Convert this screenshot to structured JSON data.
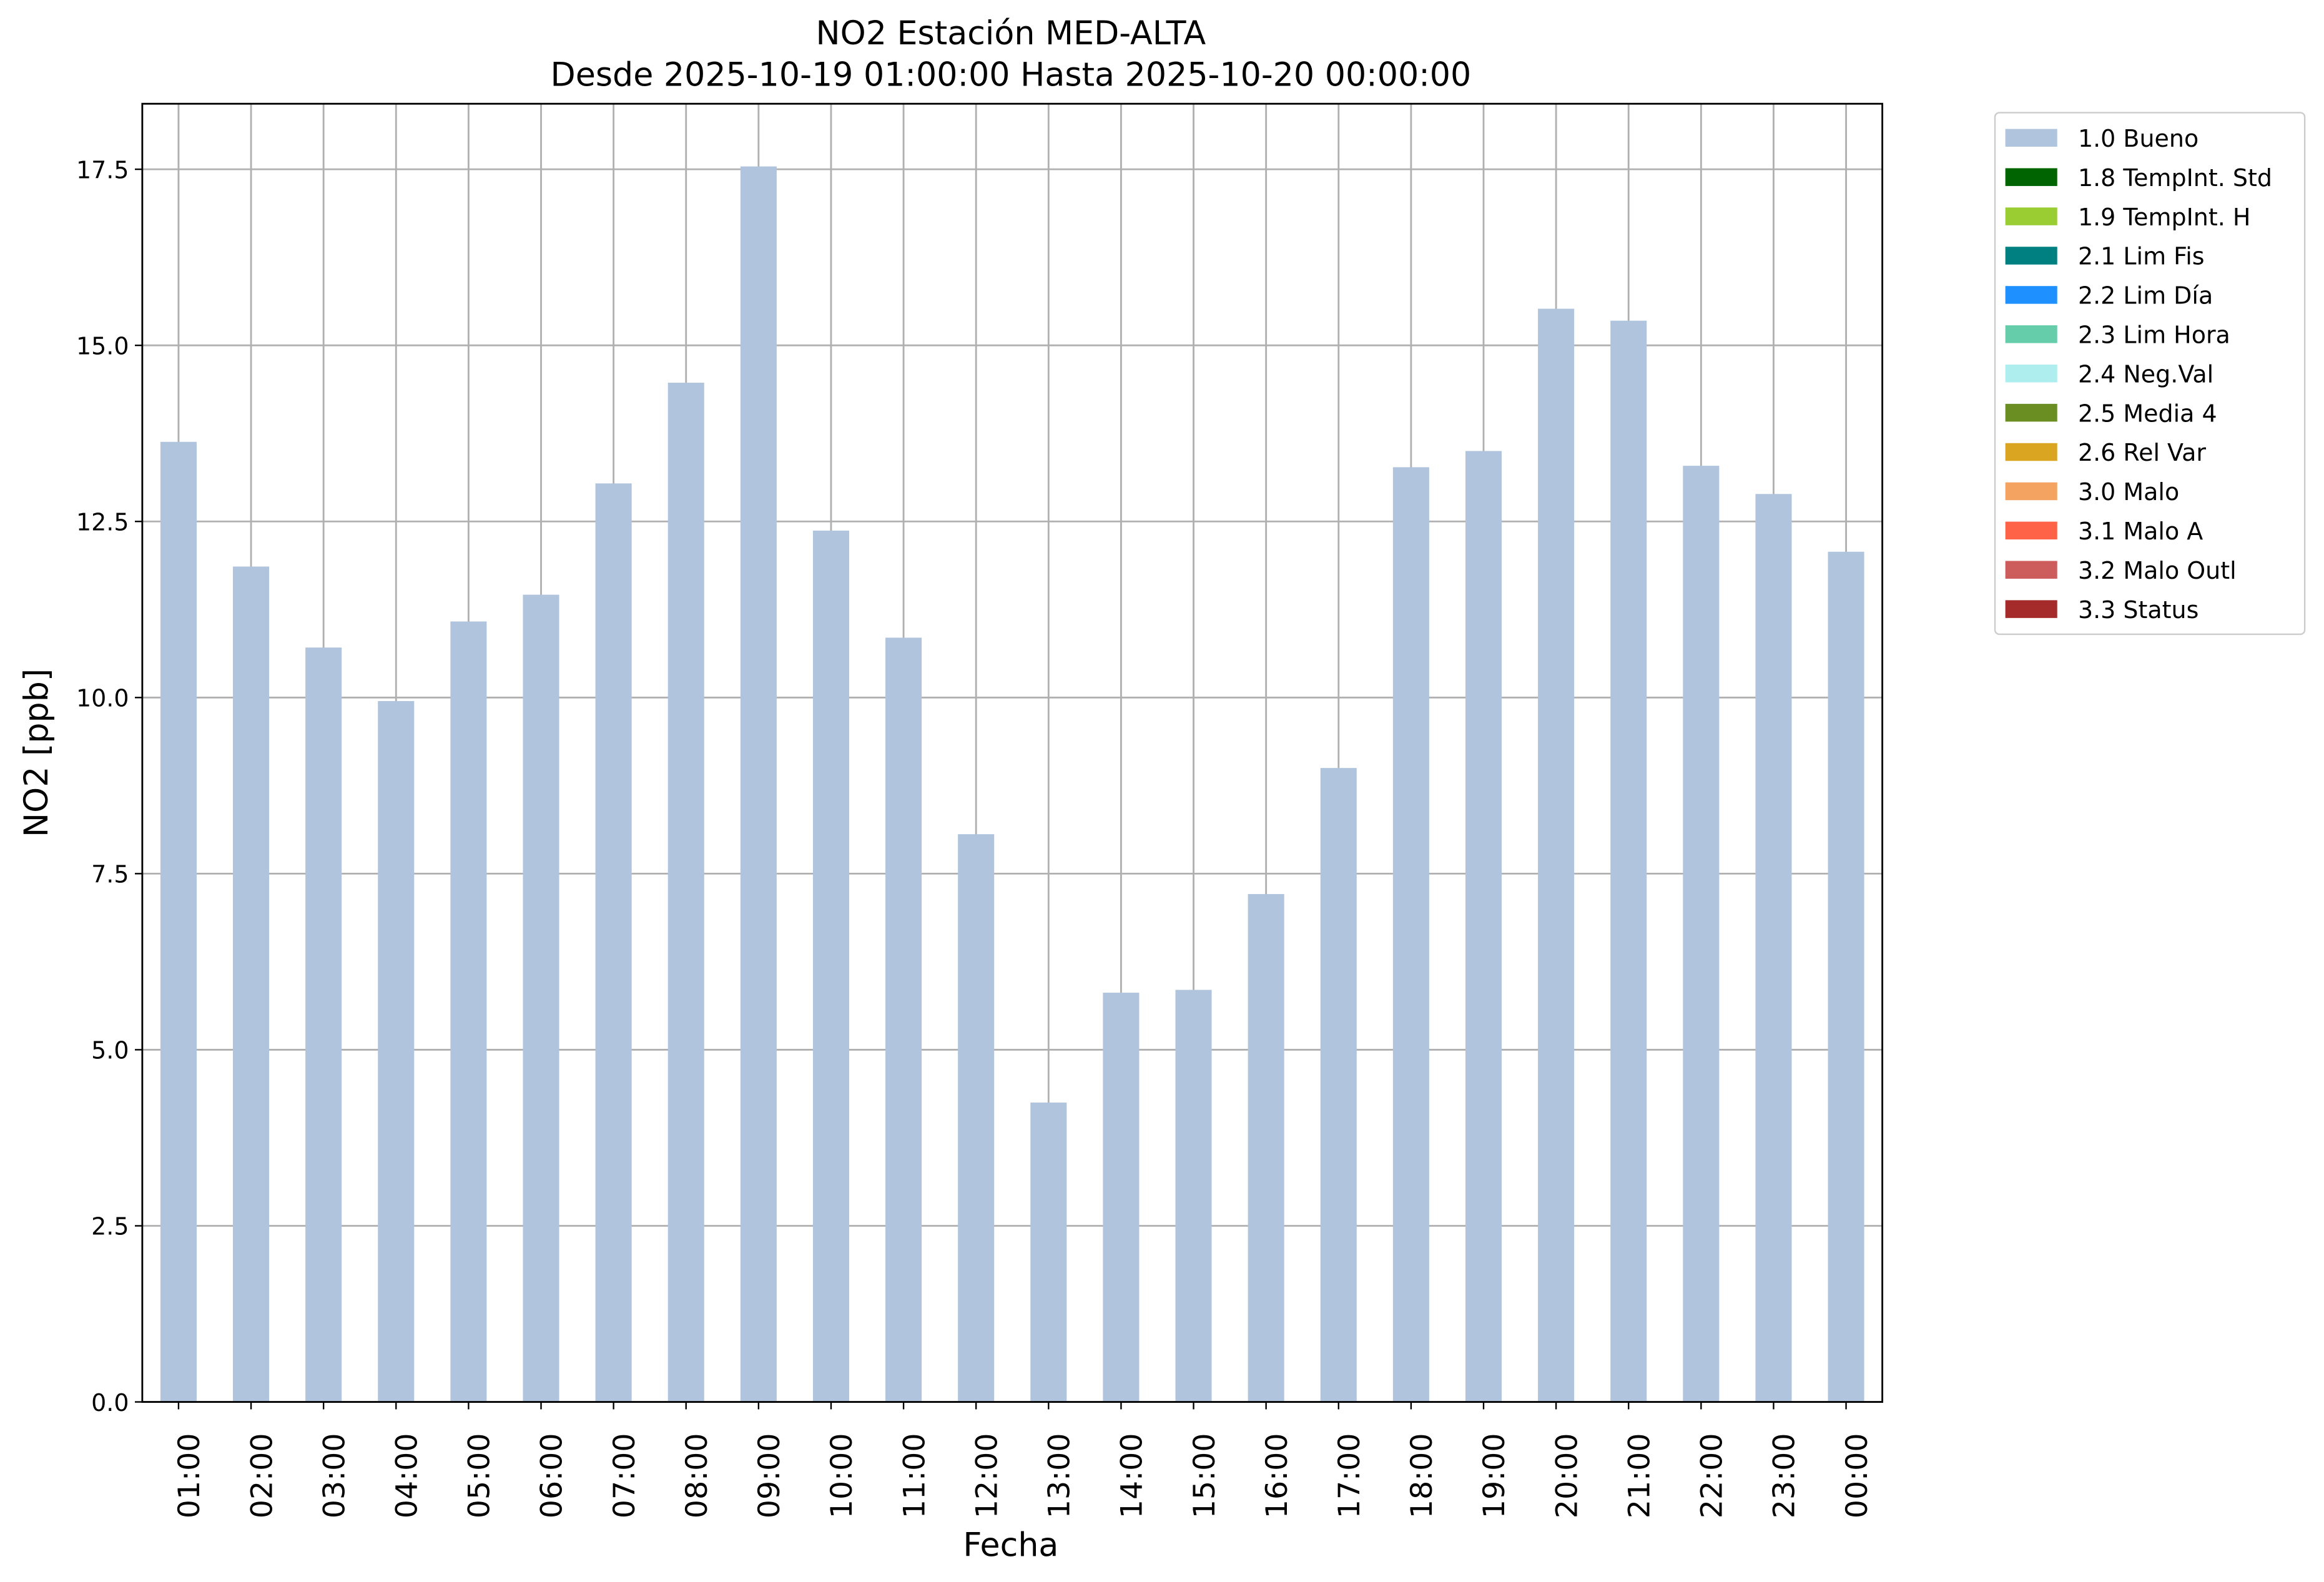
{
  "chart_data": {
    "type": "bar",
    "stacked": true,
    "title": "NO2 Estación MED-ALTA",
    "subtitle": "Desde 2025-10-19 01:00:00 Hasta 2025-10-20 00:00:00",
    "x_label": "Fecha",
    "y_label": "NO2 [ppb]",
    "categories": [
      "01:00",
      "02:00",
      "03:00",
      "04:00",
      "05:00",
      "06:00",
      "07:00",
      "08:00",
      "09:00",
      "10:00",
      "11:00",
      "12:00",
      "13:00",
      "14:00",
      "15:00",
      "16:00",
      "17:00",
      "18:00",
      "19:00",
      "20:00",
      "21:00",
      "22:00",
      "23:00",
      "00:00"
    ],
    "series": [
      {
        "name": "1.0 Bueno",
        "color": "#b0c4de",
        "values": [
          13.63,
          11.86,
          10.71,
          9.95,
          11.08,
          11.46,
          13.04,
          14.47,
          17.54,
          12.37,
          10.85,
          8.06,
          4.25,
          5.81,
          5.85,
          7.21,
          9.0,
          13.27,
          13.5,
          15.52,
          15.35,
          13.29,
          12.89,
          12.07
        ]
      },
      {
        "name": "1.8 TempInt. Std",
        "color": "#006400",
        "values": [
          0,
          0,
          0,
          0,
          0,
          0,
          0,
          0,
          0,
          0,
          0,
          0,
          0,
          0,
          0,
          0,
          0,
          0,
          0,
          0,
          0,
          0,
          0,
          0
        ]
      },
      {
        "name": "1.9 TempInt. H",
        "color": "#9acd32",
        "values": [
          0,
          0,
          0,
          0,
          0,
          0,
          0,
          0,
          0,
          0,
          0,
          0,
          0,
          0,
          0,
          0,
          0,
          0,
          0,
          0,
          0,
          0,
          0,
          0
        ]
      },
      {
        "name": "2.1 Lim Fis",
        "color": "#008080",
        "values": [
          0,
          0,
          0,
          0,
          0,
          0,
          0,
          0,
          0,
          0,
          0,
          0,
          0,
          0,
          0,
          0,
          0,
          0,
          0,
          0,
          0,
          0,
          0,
          0
        ]
      },
      {
        "name": "2.2 Lim Día",
        "color": "#1e90ff",
        "values": [
          0,
          0,
          0,
          0,
          0,
          0,
          0,
          0,
          0,
          0,
          0,
          0,
          0,
          0,
          0,
          0,
          0,
          0,
          0,
          0,
          0,
          0,
          0,
          0
        ]
      },
      {
        "name": "2.3 Lim Hora",
        "color": "#66cdaa",
        "values": [
          0,
          0,
          0,
          0,
          0,
          0,
          0,
          0,
          0,
          0,
          0,
          0,
          0,
          0,
          0,
          0,
          0,
          0,
          0,
          0,
          0,
          0,
          0,
          0
        ]
      },
      {
        "name": "2.4 Neg.Val",
        "color": "#afeeee",
        "values": [
          0,
          0,
          0,
          0,
          0,
          0,
          0,
          0,
          0,
          0,
          0,
          0,
          0,
          0,
          0,
          0,
          0,
          0,
          0,
          0,
          0,
          0,
          0,
          0
        ]
      },
      {
        "name": "2.5 Media 4",
        "color": "#6b8e23",
        "values": [
          0,
          0,
          0,
          0,
          0,
          0,
          0,
          0,
          0,
          0,
          0,
          0,
          0,
          0,
          0,
          0,
          0,
          0,
          0,
          0,
          0,
          0,
          0,
          0
        ]
      },
      {
        "name": "2.6 Rel Var",
        "color": "#daa520",
        "values": [
          0,
          0,
          0,
          0,
          0,
          0,
          0,
          0,
          0,
          0,
          0,
          0,
          0,
          0,
          0,
          0,
          0,
          0,
          0,
          0,
          0,
          0,
          0,
          0
        ]
      },
      {
        "name": "3.0 Malo",
        "color": "#f4a460",
        "values": [
          0,
          0,
          0,
          0,
          0,
          0,
          0,
          0,
          0,
          0,
          0,
          0,
          0,
          0,
          0,
          0,
          0,
          0,
          0,
          0,
          0,
          0,
          0,
          0
        ]
      },
      {
        "name": "3.1 Malo A",
        "color": "#ff6347",
        "values": [
          0,
          0,
          0,
          0,
          0,
          0,
          0,
          0,
          0,
          0,
          0,
          0,
          0,
          0,
          0,
          0,
          0,
          0,
          0,
          0,
          0,
          0,
          0,
          0
        ]
      },
      {
        "name": "3.2 Malo Outl",
        "color": "#cd5c5c",
        "values": [
          0,
          0,
          0,
          0,
          0,
          0,
          0,
          0,
          0,
          0,
          0,
          0,
          0,
          0,
          0,
          0,
          0,
          0,
          0,
          0,
          0,
          0,
          0,
          0
        ]
      },
      {
        "name": "3.3 Status",
        "color": "#a52a2a",
        "values": [
          0,
          0,
          0,
          0,
          0,
          0,
          0,
          0,
          0,
          0,
          0,
          0,
          0,
          0,
          0,
          0,
          0,
          0,
          0,
          0,
          0,
          0,
          0,
          0
        ]
      }
    ],
    "ylim": [
      0,
      18.43
    ],
    "yticks": [
      {
        "value": 0,
        "label": "0.0"
      },
      {
        "value": 2.5,
        "label": "2.5"
      },
      {
        "value": 5,
        "label": "5.0"
      },
      {
        "value": 7.5,
        "label": "7.5"
      },
      {
        "value": 10,
        "label": "10.0"
      },
      {
        "value": 12.5,
        "label": "12.5"
      },
      {
        "value": 15,
        "label": "15.0"
      },
      {
        "value": 17.5,
        "label": "17.5"
      }
    ],
    "grid": true,
    "legend": "outside-upper-right"
  }
}
